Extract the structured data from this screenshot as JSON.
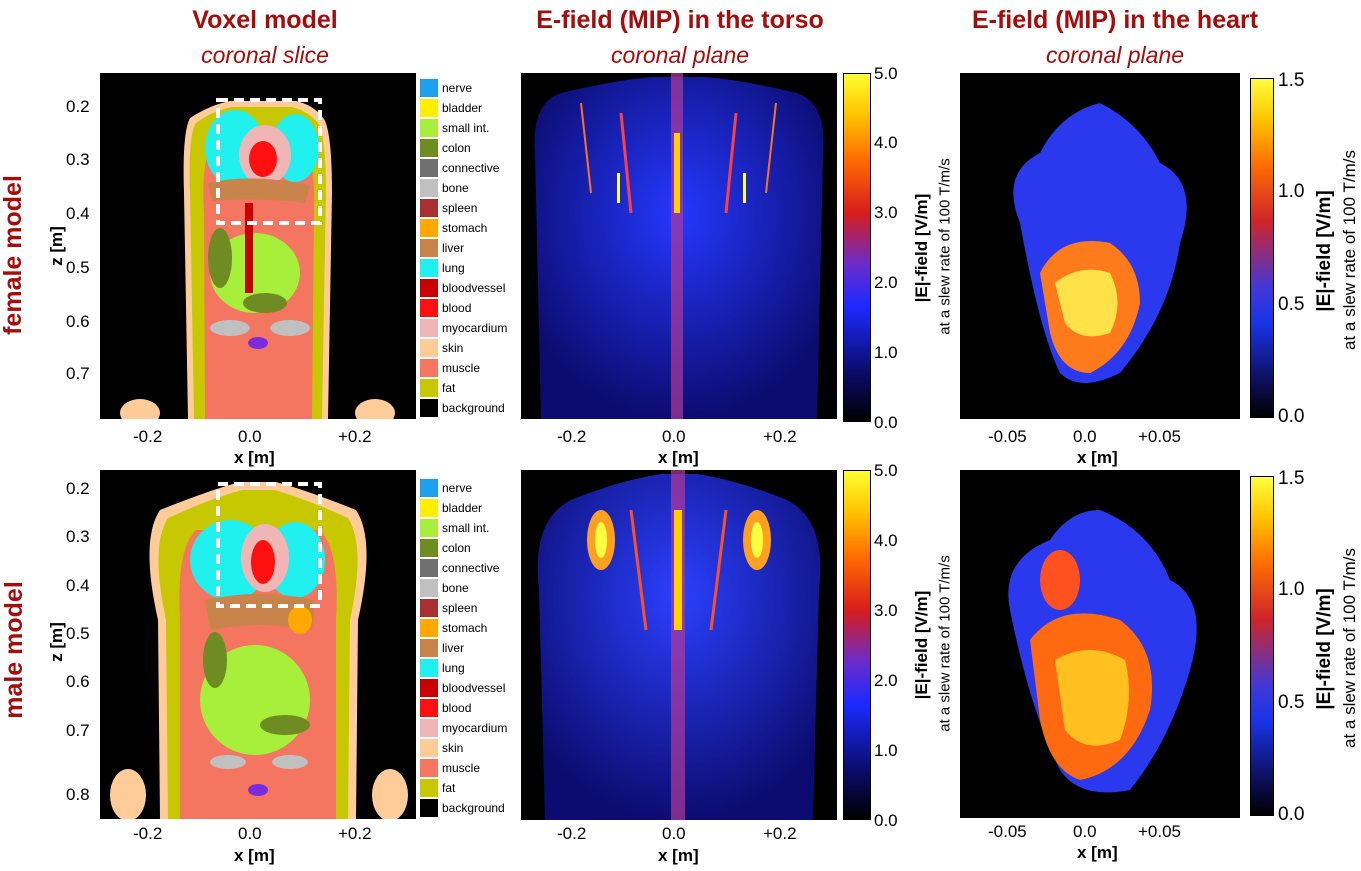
{
  "columns": {
    "voxel": {
      "title": "Voxel model",
      "subtitle": "coronal slice"
    },
    "torso": {
      "title": "E-field (MIP) in the torso",
      "subtitle": "coronal plane"
    },
    "heart": {
      "title": "E-field (MIP) in the heart",
      "subtitle": "coronal plane"
    }
  },
  "rows": {
    "female": {
      "label": "female model"
    },
    "male": {
      "label": "male model"
    }
  },
  "axes": {
    "z_label": "z [m]",
    "x_label": "x [m]",
    "female_z_ticks": [
      "0.2",
      "0.3",
      "0.4",
      "0.5",
      "0.6",
      "0.7"
    ],
    "male_z_ticks": [
      "0.2",
      "0.3",
      "0.4",
      "0.5",
      "0.6",
      "0.7",
      "0.8"
    ],
    "torso_x_ticks": [
      "-0.2",
      "0.0",
      "+0.2"
    ],
    "heart_x_ticks": [
      "-0.05",
      "0.0",
      "+0.05"
    ]
  },
  "legend": [
    {
      "label": "nerve",
      "color": "#1ea0ee"
    },
    {
      "label": "bladder",
      "color": "#ffee00"
    },
    {
      "label": "small int.",
      "color": "#a8ef3c"
    },
    {
      "label": "colon",
      "color": "#6f8c22"
    },
    {
      "label": "connective",
      "color": "#707070"
    },
    {
      "label": "bone",
      "color": "#c0c0c0"
    },
    {
      "label": "spleen",
      "color": "#a83030"
    },
    {
      "label": "stomach",
      "color": "#ffa800"
    },
    {
      "label": "liver",
      "color": "#c8844a"
    },
    {
      "label": "lung",
      "color": "#20f0ee"
    },
    {
      "label": "bloodvessel",
      "color": "#c80000"
    },
    {
      "label": "blood",
      "color": "#ff1010"
    },
    {
      "label": "myocardium",
      "color": "#f0b6b6"
    },
    {
      "label": "skin",
      "color": "#ffcc99"
    },
    {
      "label": "muscle",
      "color": "#f47560"
    },
    {
      "label": "fat",
      "color": "#c8c800"
    },
    {
      "label": "background",
      "color": "#000000"
    }
  ],
  "colorbars": {
    "torso": {
      "ticks": [
        "5.0",
        "4.0",
        "3.0",
        "2.0",
        "1.0",
        "0.0"
      ],
      "label": "|E|-field [V/m]",
      "sublabel": "at a slew rate of 100 T/m/s"
    },
    "heart": {
      "ticks": [
        "1.5",
        "1.0",
        "0.5",
        "0.0"
      ],
      "label": "|E|-field [V/m]",
      "sublabel": "at a slew rate of 100 T/m/s"
    }
  }
}
